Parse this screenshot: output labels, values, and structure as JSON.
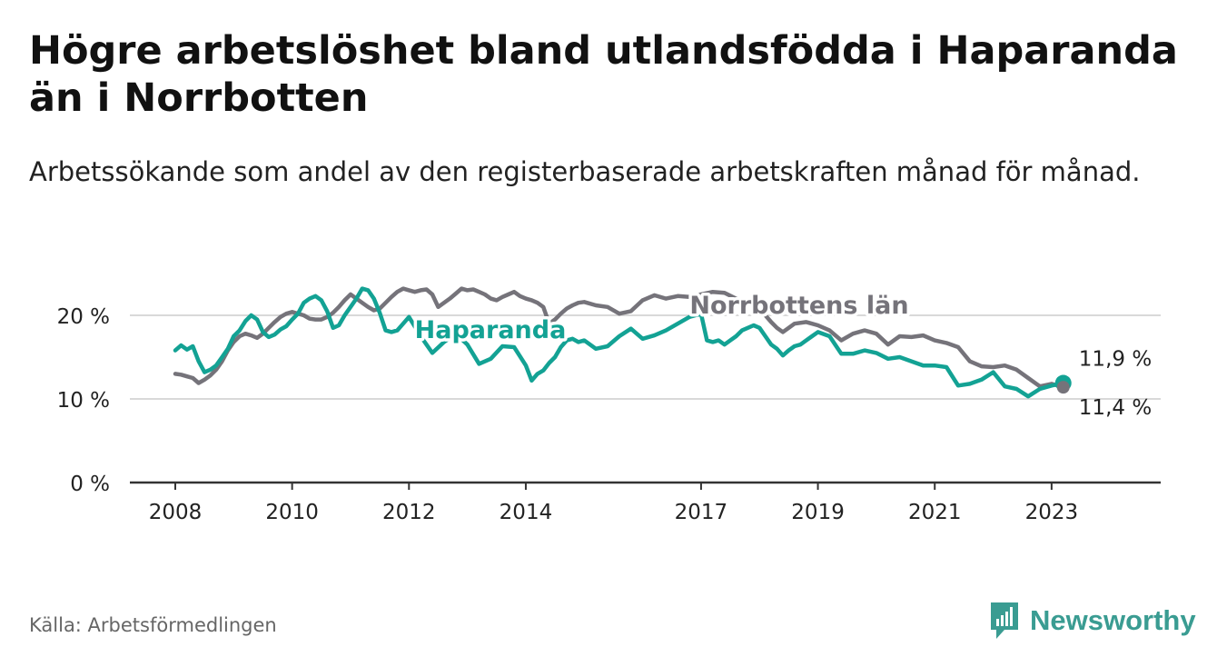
{
  "title": "Högre arbetslöshet bland utlandsfödda i Haparanda än i Norrbotten",
  "subtitle": "Arbetssökande som andel av den registerbaserade arbetskraften månad för månad.",
  "source": "Källa: Arbetsförmedlingen",
  "brand": "Newsworthy",
  "chart_data": {
    "type": "line",
    "title": "Högre arbetslöshet bland utlandsfödda i Haparanda än i Norrbotten",
    "xlabel": "",
    "ylabel": "",
    "xlim": [
      2008,
      2024.05
    ],
    "ylim": [
      0,
      26
    ],
    "y_ticks": [
      {
        "value": 0,
        "label": "0 %"
      },
      {
        "value": 10,
        "label": "10 %"
      },
      {
        "value": 20,
        "label": "20 %"
      }
    ],
    "x_ticks": [
      {
        "value": 2008,
        "label": "2008"
      },
      {
        "value": 2010,
        "label": "2010"
      },
      {
        "value": 2012,
        "label": "2012"
      },
      {
        "value": 2014,
        "label": "2014"
      },
      {
        "value": 2017,
        "label": "2017"
      },
      {
        "value": 2019,
        "label": "2019"
      },
      {
        "value": 2021,
        "label": "2021"
      },
      {
        "value": 2023,
        "label": "2023"
      }
    ],
    "grid": true,
    "colors": {
      "haparanda": "#13a294",
      "norrbotten": "#75737a",
      "grid": "#d9d9d9",
      "axis": "#333333"
    },
    "series": [
      {
        "name": "Haparanda",
        "color": "#13a294",
        "end_label": "11,9 %",
        "x": [
          2008.0,
          2008.1,
          2008.2,
          2008.3,
          2008.4,
          2008.5,
          2008.6,
          2008.7,
          2008.8,
          2008.9,
          2009.0,
          2009.1,
          2009.2,
          2009.3,
          2009.4,
          2009.5,
          2009.6,
          2009.7,
          2009.8,
          2009.9,
          2010.0,
          2010.1,
          2010.2,
          2010.3,
          2010.4,
          2010.5,
          2010.6,
          2010.7,
          2010.8,
          2010.9,
          2011.0,
          2011.1,
          2011.2,
          2011.3,
          2011.4,
          2011.5,
          2011.6,
          2011.7,
          2011.8,
          2011.9,
          2012.0,
          2012.2,
          2012.4,
          2012.6,
          2012.8,
          2013.0,
          2013.2,
          2013.4,
          2013.6,
          2013.8,
          2014.0,
          2014.1,
          2014.2,
          2014.3,
          2014.4,
          2014.5,
          2014.6,
          2014.7,
          2014.8,
          2014.9,
          2015.0,
          2015.2,
          2015.4,
          2015.6,
          2015.8,
          2016.0,
          2016.2,
          2016.4,
          2016.6,
          2016.8,
          2017.0,
          2017.1,
          2017.2,
          2017.3,
          2017.4,
          2017.5,
          2017.6,
          2017.7,
          2017.8,
          2017.9,
          2018.0,
          2018.1,
          2018.2,
          2018.3,
          2018.4,
          2018.5,
          2018.6,
          2018.7,
          2018.8,
          2018.9,
          2019.0,
          2019.2,
          2019.4,
          2019.6,
          2019.8,
          2020.0,
          2020.2,
          2020.4,
          2020.6,
          2020.8,
          2021.0,
          2021.2,
          2021.4,
          2021.6,
          2021.8,
          2022.0,
          2022.2,
          2022.4,
          2022.6,
          2022.8,
          2023.0,
          2023.2
        ],
        "values": [
          15.8,
          16.4,
          15.9,
          16.3,
          14.5,
          13.2,
          13.5,
          14.0,
          15.0,
          16.0,
          17.5,
          18.2,
          19.3,
          20.0,
          19.5,
          18.0,
          17.4,
          17.7,
          18.3,
          18.7,
          19.5,
          20.2,
          21.5,
          22.0,
          22.3,
          21.8,
          20.5,
          18.5,
          18.8,
          20.0,
          21.0,
          22.0,
          23.2,
          23.0,
          22.0,
          20.3,
          18.2,
          18.0,
          18.2,
          19.0,
          19.8,
          17.5,
          15.5,
          16.8,
          17.8,
          16.5,
          14.2,
          14.8,
          16.3,
          16.2,
          14.0,
          12.2,
          13.0,
          13.4,
          14.3,
          15.0,
          16.2,
          17.0,
          17.2,
          16.8,
          17.0,
          16.0,
          16.3,
          17.5,
          18.4,
          17.2,
          17.6,
          18.2,
          19.0,
          19.8,
          20.2,
          17.0,
          16.8,
          17.0,
          16.5,
          17.0,
          17.5,
          18.2,
          18.5,
          18.8,
          18.5,
          17.5,
          16.5,
          16.0,
          15.2,
          15.8,
          16.3,
          16.5,
          17.0,
          17.5,
          18.0,
          17.5,
          15.4,
          15.4,
          15.8,
          15.5,
          14.8,
          15.0,
          14.5,
          14.0,
          14.0,
          13.8,
          11.6,
          11.8,
          12.3,
          13.2,
          11.5,
          11.2,
          10.3,
          11.2,
          11.6,
          11.9
        ]
      },
      {
        "name": "Norrbottens län",
        "color": "#75737a",
        "end_label": "11,4 %",
        "x": [
          2008.0,
          2008.1,
          2008.2,
          2008.3,
          2008.4,
          2008.5,
          2008.6,
          2008.7,
          2008.8,
          2008.9,
          2009.0,
          2009.1,
          2009.2,
          2009.3,
          2009.4,
          2009.5,
          2009.6,
          2009.7,
          2009.8,
          2009.9,
          2010.0,
          2010.1,
          2010.2,
          2010.3,
          2010.4,
          2010.5,
          2010.6,
          2010.7,
          2010.8,
          2010.9,
          2011.0,
          2011.1,
          2011.2,
          2011.3,
          2011.4,
          2011.5,
          2011.6,
          2011.7,
          2011.8,
          2011.9,
          2012.0,
          2012.1,
          2012.2,
          2012.3,
          2012.4,
          2012.5,
          2012.6,
          2012.7,
          2012.8,
          2012.9,
          2013.0,
          2013.1,
          2013.2,
          2013.3,
          2013.4,
          2013.5,
          2013.6,
          2013.7,
          2013.8,
          2013.9,
          2014.0,
          2014.1,
          2014.2,
          2014.3,
          2014.4,
          2014.5,
          2014.6,
          2014.7,
          2014.8,
          2014.9,
          2015.0,
          2015.2,
          2015.4,
          2015.6,
          2015.8,
          2016.0,
          2016.2,
          2016.4,
          2016.6,
          2016.8,
          2017.0,
          2017.2,
          2017.4,
          2017.6,
          2017.8,
          2018.0,
          2018.1,
          2018.2,
          2018.3,
          2018.4,
          2018.5,
          2018.6,
          2018.8,
          2019.0,
          2019.2,
          2019.4,
          2019.6,
          2019.8,
          2020.0,
          2020.2,
          2020.4,
          2020.6,
          2020.8,
          2021.0,
          2021.2,
          2021.4,
          2021.6,
          2021.8,
          2022.0,
          2022.2,
          2022.4,
          2022.6,
          2022.8,
          2023.0,
          2023.2
        ],
        "values": [
          13.0,
          12.9,
          12.7,
          12.5,
          11.9,
          12.3,
          12.8,
          13.5,
          14.5,
          15.8,
          16.8,
          17.5,
          17.8,
          17.6,
          17.3,
          17.8,
          18.5,
          19.2,
          19.8,
          20.2,
          20.4,
          20.2,
          20.0,
          19.6,
          19.5,
          19.5,
          19.8,
          20.3,
          21.0,
          21.8,
          22.5,
          22.0,
          21.5,
          21.0,
          20.6,
          20.8,
          21.5,
          22.2,
          22.8,
          23.2,
          23.0,
          22.8,
          23.0,
          23.1,
          22.5,
          21.0,
          21.5,
          22.0,
          22.6,
          23.2,
          23.0,
          23.1,
          22.8,
          22.5,
          22.0,
          21.8,
          22.2,
          22.5,
          22.8,
          22.3,
          22.0,
          21.8,
          21.5,
          21.0,
          19.0,
          19.5,
          20.2,
          20.8,
          21.2,
          21.5,
          21.6,
          21.2,
          21.0,
          20.2,
          20.5,
          21.8,
          22.4,
          22.0,
          22.3,
          22.2,
          22.5,
          22.8,
          22.7,
          22.0,
          21.5,
          20.6,
          20.0,
          19.2,
          18.5,
          18.0,
          18.5,
          19.0,
          19.2,
          18.8,
          18.2,
          17.0,
          17.8,
          18.2,
          17.8,
          16.5,
          17.5,
          17.4,
          17.6,
          17.0,
          16.7,
          16.2,
          14.5,
          13.9,
          13.8,
          14.0,
          13.5,
          12.5,
          11.5,
          11.8,
          11.4
        ]
      }
    ],
    "annotations": [
      {
        "text": "Haparanda",
        "series": "Haparanda"
      },
      {
        "text": "Norrbottens län",
        "series": "Norrbottens län"
      }
    ]
  }
}
